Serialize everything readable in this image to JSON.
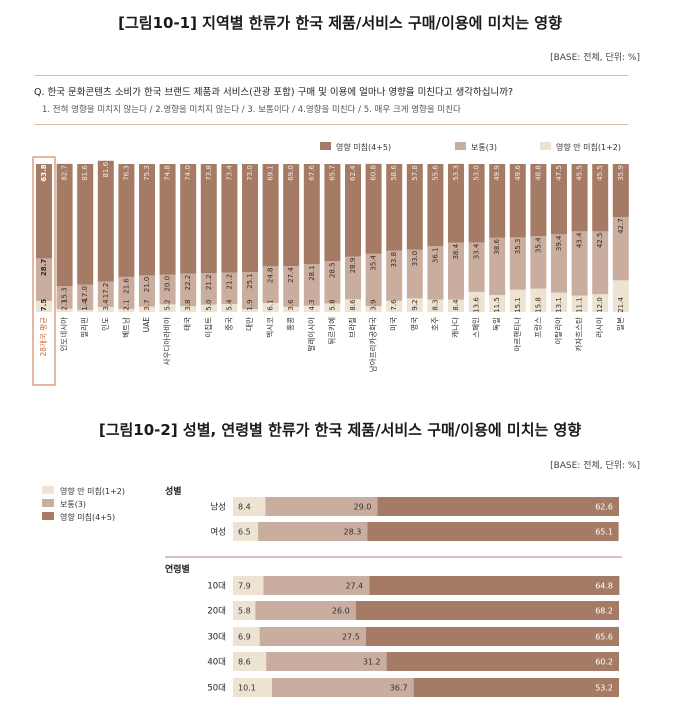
{
  "chart1": {
    "title": "[그림10-1] 지역별 한류가 한국 제품/서비스 구매/이용에 미치는 영향",
    "base": "[BASE: 전체, 단위: %]",
    "question": "Q. 한국 문화콘텐츠 소비가 한국 브랜드 제품과 서비스(관광 포함) 구매 및 이용에 얼마나 영향을 미친다고 생각하십니까?",
    "choices": "1. 전혀 영향을 미치지 않는다 / 2.영향을 미치지 않는다 / 3. 보통이다 / 4.영향을 미친다 / 5. 매우 크게 영향을 미친다",
    "legend": [
      "영향 미침(4+5)",
      "보통(3)",
      "영향 안 미침(1+2)"
    ]
  },
  "chart2": {
    "title": "[그림10-2] 성별, 연령별 한류가 한국 제품/서비스 구매/이용에 미치는 영향",
    "base": "[BASE: 전체, 단위: %]",
    "legend": [
      "영향 안 미침(1+2)",
      "보통(3)",
      "영향 미침(4+5)"
    ],
    "group_gender": "성별",
    "group_age": "연령별"
  },
  "colors": {
    "high": "#a67b66",
    "mid": "#c9ad9e",
    "low": "#ede3d2",
    "highlight": "#c8703c"
  },
  "chart_data": [
    {
      "type": "bar",
      "stacked": true,
      "title": "[그림10-1] 지역별 한류가 한국 제품/서비스 구매/이용에 미치는 영향",
      "categories": [
        "28개국 평균",
        "인도네시아",
        "필리핀",
        "인도",
        "베트남",
        "UAE",
        "사우디아라비아",
        "태국",
        "이집트",
        "중국",
        "대만",
        "멕시코",
        "홍콩",
        "말레이시아",
        "튀르키예",
        "브라질",
        "남아프리카공화국",
        "미국",
        "영국",
        "호주",
        "캐나다",
        "스페인",
        "독일",
        "아르헨티나",
        "프랑스",
        "이탈리아",
        "카자흐스탄",
        "러시아",
        "일본"
      ],
      "series": [
        {
          "name": "영향 미침(4+5)",
          "values": [
            63.8,
            82.7,
            81.6,
            81.6,
            76.3,
            75.3,
            74.8,
            74.0,
            73.8,
            73.4,
            73.0,
            69.1,
            69.0,
            67.6,
            65.7,
            62.4,
            60.8,
            58.6,
            57.8,
            55.6,
            53.3,
            53.0,
            49.9,
            49.6,
            48.8,
            47.5,
            45.5,
            45.5,
            35.9
          ]
        },
        {
          "name": "보통(3)",
          "values": [
            28.7,
            15.3,
            17.0,
            17.2,
            21.6,
            21.0,
            20.0,
            22.2,
            21.2,
            21.2,
            25.1,
            24.8,
            27.4,
            28.1,
            28.5,
            28.9,
            35.4,
            33.8,
            33.0,
            36.1,
            38.4,
            33.4,
            38.6,
            35.3,
            35.4,
            39.4,
            43.4,
            42.5,
            42.7
          ]
        },
        {
          "name": "영향 안 미침(1+2)",
          "values": [
            7.5,
            2.1,
            1.4,
            3.4,
            2.1,
            3.7,
            5.2,
            3.8,
            5.0,
            5.4,
            1.9,
            6.1,
            3.6,
            4.3,
            5.8,
            8.6,
            3.9,
            7.6,
            9.2,
            8.3,
            8.4,
            13.6,
            11.5,
            15.1,
            15.8,
            13.1,
            11.1,
            12.0,
            21.4
          ]
        }
      ],
      "ylim": [
        0,
        100
      ],
      "legend_position": "top-right"
    },
    {
      "type": "bar",
      "stacked": true,
      "orientation": "horizontal",
      "title": "[그림10-2] 성별, 연령별 한류가 한국 제품/서비스 구매/이용에 미치는 영향",
      "categories": [
        "남성",
        "여성",
        "10대",
        "20대",
        "30대",
        "40대",
        "50대"
      ],
      "series": [
        {
          "name": "영향 안 미침(1+2)",
          "values": [
            8.4,
            6.5,
            7.9,
            5.8,
            6.9,
            8.6,
            10.1
          ]
        },
        {
          "name": "보통(3)",
          "values": [
            29.0,
            28.3,
            27.4,
            26.0,
            27.5,
            31.2,
            36.7
          ]
        },
        {
          "name": "영향 미침(4+5)",
          "values": [
            62.6,
            65.1,
            64.8,
            68.2,
            65.6,
            60.2,
            53.2
          ]
        }
      ],
      "xlim": [
        0,
        100
      ],
      "legend_position": "top-left"
    }
  ]
}
